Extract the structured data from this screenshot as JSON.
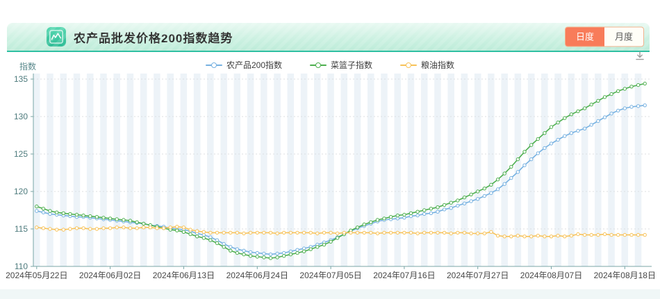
{
  "header": {
    "title": "农产品批发价格200指数趋势",
    "toggle": {
      "daily": "日度",
      "monthly": "月度",
      "active": "日度"
    },
    "accent_color": "#2fc0a2",
    "active_button_color": "#f87c5a",
    "icon": "line-chart-icon"
  },
  "download_icon": "download",
  "chart_data": {
    "type": "line",
    "title": "农产品批发价格200指数趋势",
    "y_axis_name": "指数",
    "ylim": [
      110,
      135
    ],
    "y_ticks": [
      110,
      115,
      120,
      125,
      130,
      135
    ],
    "grid": "horizontal-dotted",
    "background_stripes": true,
    "legend_position": "top",
    "x_tick_labels": [
      "2024年05月22日",
      "2024年06月02日",
      "2024年06月13日",
      "2024年06月24日",
      "2024年07月05日",
      "2024年07月16日",
      "2024年07月27日",
      "2024年08月07日",
      "2024年08月18日"
    ],
    "x_tick_indices": [
      0,
      11,
      22,
      33,
      44,
      55,
      66,
      77,
      88
    ],
    "dates": [
      "2024-05-22",
      "2024-05-23",
      "2024-05-24",
      "2024-05-25",
      "2024-05-26",
      "2024-05-27",
      "2024-05-28",
      "2024-05-29",
      "2024-05-30",
      "2024-05-31",
      "2024-06-01",
      "2024-06-02",
      "2024-06-03",
      "2024-06-04",
      "2024-06-05",
      "2024-06-06",
      "2024-06-07",
      "2024-06-08",
      "2024-06-09",
      "2024-06-10",
      "2024-06-11",
      "2024-06-12",
      "2024-06-13",
      "2024-06-14",
      "2024-06-15",
      "2024-06-16",
      "2024-06-17",
      "2024-06-18",
      "2024-06-19",
      "2024-06-20",
      "2024-06-21",
      "2024-06-22",
      "2024-06-23",
      "2024-06-24",
      "2024-06-25",
      "2024-06-26",
      "2024-06-27",
      "2024-06-28",
      "2024-06-29",
      "2024-06-30",
      "2024-07-01",
      "2024-07-02",
      "2024-07-03",
      "2024-07-04",
      "2024-07-05",
      "2024-07-06",
      "2024-07-07",
      "2024-07-08",
      "2024-07-09",
      "2024-07-10",
      "2024-07-11",
      "2024-07-12",
      "2024-07-13",
      "2024-07-14",
      "2024-07-15",
      "2024-07-16",
      "2024-07-17",
      "2024-07-18",
      "2024-07-19",
      "2024-07-20",
      "2024-07-21",
      "2024-07-22",
      "2024-07-23",
      "2024-07-24",
      "2024-07-25",
      "2024-07-26",
      "2024-07-27",
      "2024-07-28",
      "2024-07-29",
      "2024-07-30",
      "2024-07-31",
      "2024-08-01",
      "2024-08-02",
      "2024-08-03",
      "2024-08-04",
      "2024-08-05",
      "2024-08-06",
      "2024-08-07",
      "2024-08-08",
      "2024-08-09",
      "2024-08-10",
      "2024-08-11",
      "2024-08-12",
      "2024-08-13",
      "2024-08-14",
      "2024-08-15",
      "2024-08-16",
      "2024-08-17",
      "2024-08-18",
      "2024-08-19",
      "2024-08-20",
      "2024-08-21"
    ],
    "series": [
      {
        "name": "农产品200指数",
        "color": "#76b1e1",
        "values": [
          117.4,
          117.2,
          117.0,
          116.9,
          116.8,
          116.7,
          116.6,
          116.6,
          116.5,
          116.4,
          116.3,
          116.2,
          116.1,
          116.0,
          115.9,
          115.8,
          115.7,
          115.5,
          115.4,
          115.3,
          115.1,
          115.0,
          114.9,
          114.7,
          114.4,
          114.2,
          113.9,
          113.5,
          113.0,
          112.6,
          112.3,
          112.1,
          111.9,
          111.8,
          111.7,
          111.6,
          111.7,
          111.8,
          112.0,
          112.2,
          112.4,
          112.6,
          112.9,
          113.2,
          113.5,
          113.9,
          114.3,
          114.7,
          115.1,
          115.4,
          115.7,
          116.0,
          116.2,
          116.3,
          116.4,
          116.5,
          116.7,
          116.8,
          117.0,
          117.1,
          117.3,
          117.6,
          117.8,
          118.1,
          118.4,
          118.7,
          119.0,
          119.4,
          119.8,
          120.3,
          121.0,
          121.8,
          122.6,
          123.5,
          124.3,
          125.1,
          125.8,
          126.4,
          126.9,
          127.4,
          127.8,
          128.1,
          128.4,
          128.9,
          129.4,
          129.9,
          130.4,
          130.8,
          131.1,
          131.3,
          131.4,
          131.5
        ]
      },
      {
        "name": "菜篮子指数",
        "color": "#4daf4e",
        "values": [
          118.0,
          117.7,
          117.4,
          117.2,
          117.1,
          117.0,
          116.9,
          116.8,
          116.7,
          116.6,
          116.5,
          116.4,
          116.3,
          116.2,
          116.1,
          115.9,
          115.7,
          115.5,
          115.3,
          115.1,
          114.9,
          114.8,
          114.6,
          114.3,
          114.0,
          113.8,
          113.5,
          113.1,
          112.6,
          112.1,
          111.8,
          111.6,
          111.4,
          111.3,
          111.2,
          111.1,
          111.2,
          111.4,
          111.6,
          111.8,
          112.0,
          112.3,
          112.6,
          112.9,
          113.3,
          113.8,
          114.3,
          114.8,
          115.2,
          115.6,
          115.9,
          116.2,
          116.4,
          116.6,
          116.8,
          116.9,
          117.1,
          117.3,
          117.5,
          117.7,
          117.9,
          118.2,
          118.5,
          118.8,
          119.2,
          119.6,
          120.0,
          120.4,
          120.9,
          121.6,
          122.4,
          123.3,
          124.3,
          125.3,
          126.2,
          127.0,
          127.8,
          128.6,
          129.2,
          129.8,
          130.3,
          130.7,
          131.1,
          131.6,
          132.1,
          132.6,
          133.0,
          133.4,
          133.7,
          134.0,
          134.2,
          134.4
        ]
      },
      {
        "name": "粮油指数",
        "color": "#f7c258",
        "values": [
          115.2,
          115.1,
          115.0,
          114.9,
          114.9,
          115.0,
          115.1,
          115.1,
          115.0,
          115.0,
          115.1,
          115.1,
          115.2,
          115.2,
          115.1,
          115.1,
          115.2,
          115.2,
          115.1,
          115.1,
          115.2,
          115.3,
          115.2,
          114.9,
          114.7,
          114.6,
          114.5,
          114.5,
          114.5,
          114.5,
          114.5,
          114.4,
          114.5,
          114.5,
          114.5,
          114.5,
          114.4,
          114.5,
          114.5,
          114.5,
          114.5,
          114.5,
          114.4,
          114.5,
          114.5,
          114.4,
          114.5,
          114.5,
          114.5,
          114.5,
          114.5,
          114.4,
          114.5,
          114.5,
          114.5,
          114.5,
          114.5,
          114.4,
          114.5,
          114.5,
          114.5,
          114.5,
          114.4,
          114.5,
          114.5,
          114.4,
          114.4,
          114.4,
          114.6,
          114.1,
          114.0,
          114.0,
          114.1,
          114.0,
          114.0,
          114.1,
          114.0,
          114.0,
          114.1,
          114.0,
          114.1,
          114.3,
          114.2,
          114.2,
          114.2,
          114.3,
          114.2,
          114.2,
          114.2,
          114.2,
          114.2,
          114.2
        ]
      }
    ],
    "style": {
      "stripe_color": "#edf3f8",
      "axis_color": "#78a5a6",
      "grid_color": "#dcdfe2",
      "y_label_color": "#4e7b7d",
      "x_label_color": "#474747"
    }
  }
}
